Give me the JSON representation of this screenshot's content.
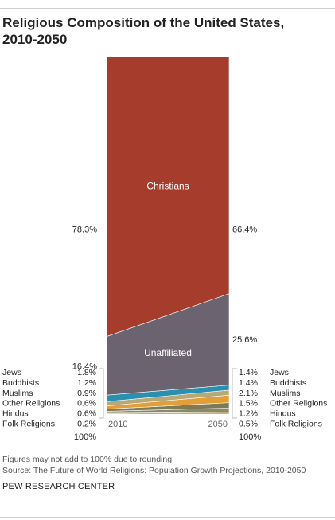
{
  "title_line1": "Religious Composition of the United States,",
  "title_line2": "2010-2050",
  "chart_data": {
    "type": "area",
    "title": "Religious Composition of the United States, 2010-2050",
    "categories": [
      "2010",
      "2050"
    ],
    "unit": "%",
    "ylim": [
      0,
      100
    ],
    "stack_order": "bottom-to-top",
    "series": [
      {
        "name": "Folk Religions",
        "values": [
          0.2,
          0.5
        ],
        "labels": [
          "0.2%",
          "0.5%"
        ],
        "color": "#b09a5c"
      },
      {
        "name": "Hindus",
        "values": [
          0.6,
          1.2
        ],
        "labels": [
          "0.6%",
          "1.2%"
        ],
        "color": "#8a8a6a"
      },
      {
        "name": "Other Religions",
        "values": [
          0.6,
          1.5
        ],
        "labels": [
          "0.6%",
          "1.5%"
        ],
        "color": "#7d7a56"
      },
      {
        "name": "Muslims",
        "values": [
          0.9,
          2.1
        ],
        "labels": [
          "0.9%",
          "2.1%"
        ],
        "color": "#e39f37"
      },
      {
        "name": "Buddhists",
        "values": [
          1.2,
          1.4
        ],
        "labels": [
          "1.2%",
          "1.4%"
        ],
        "color": "#b8a877"
      },
      {
        "name": "Jews",
        "values": [
          1.8,
          1.4
        ],
        "labels": [
          "1.8%",
          "1.4%"
        ],
        "color": "#2b8fb0"
      },
      {
        "name": "Unaffiliated",
        "values": [
          16.4,
          25.6
        ],
        "labels": [
          "16.4%",
          "25.6%"
        ],
        "color": "#6b6470"
      },
      {
        "name": "Christians",
        "values": [
          78.3,
          66.4
        ],
        "labels": [
          "78.3%",
          "66.4%"
        ],
        "color": "#a63c2c"
      }
    ],
    "inside_labels": [
      "Christians",
      "Unaffiliated"
    ],
    "small_groups": [
      "Jews",
      "Buddhists",
      "Muslims",
      "Other Religions",
      "Hindus",
      "Folk Religions"
    ],
    "totals": [
      "100%",
      "100%"
    ]
  },
  "footnote": "Figures may not add to 100% due to rounding.",
  "source": "Source: The Future of World Religions: Population Growth Projections, 2010-2050",
  "brand": "PEW RESEARCH CENTER"
}
